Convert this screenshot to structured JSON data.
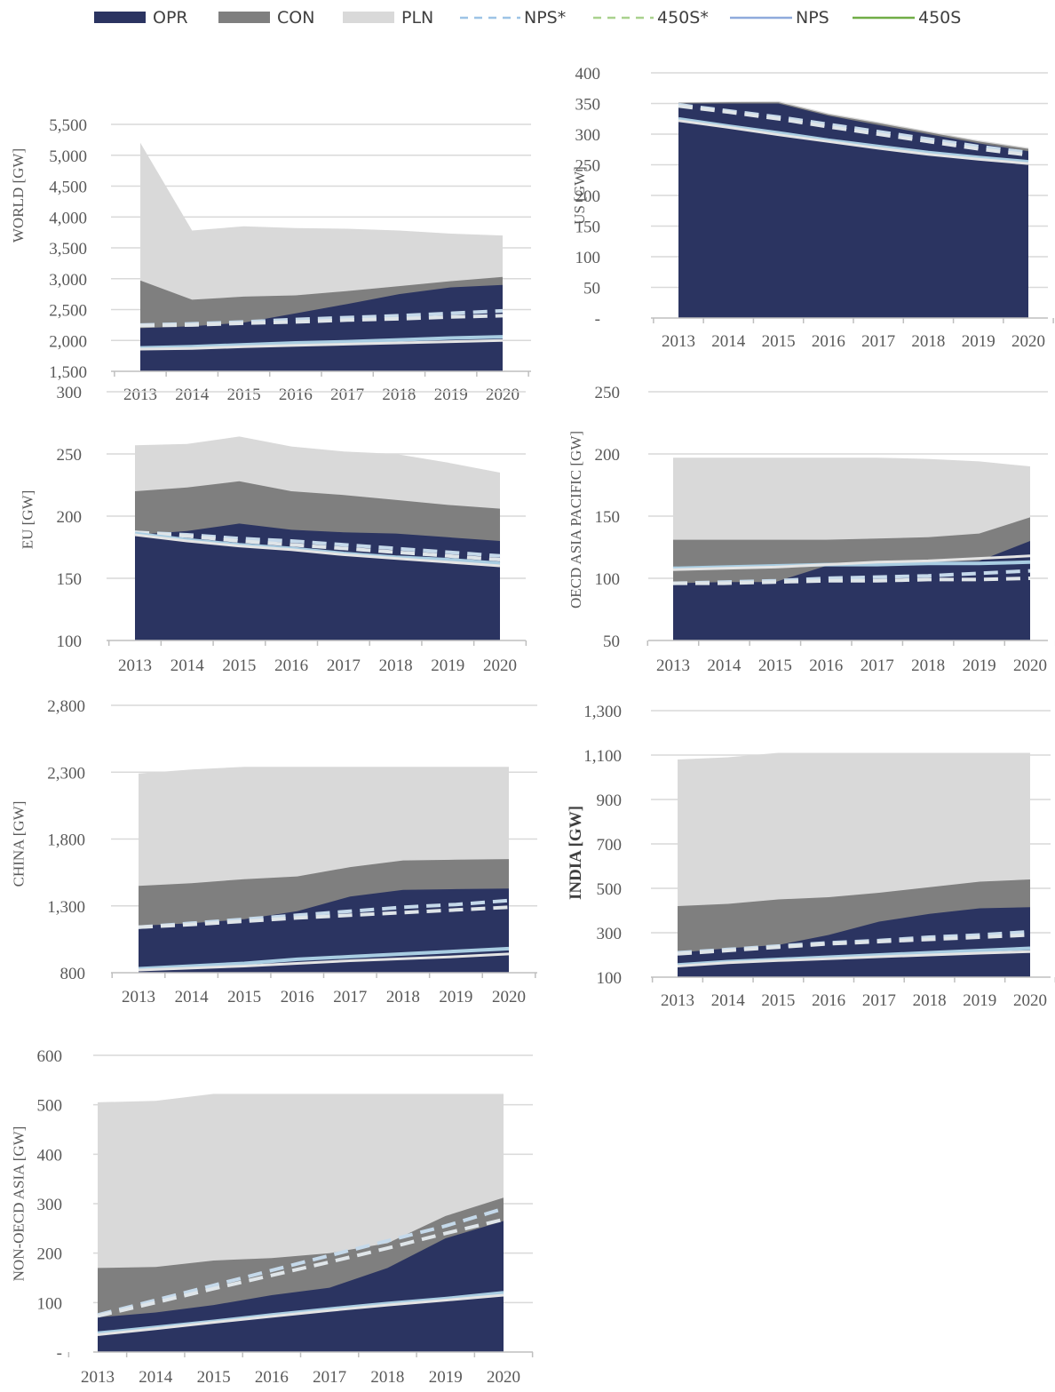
{
  "legend": [
    {
      "key": "opr",
      "label": "OPR",
      "kind": "area",
      "color": "#2b3461"
    },
    {
      "key": "con",
      "label": "CON",
      "kind": "area",
      "color": "#7f7f7f"
    },
    {
      "key": "pln",
      "label": "PLN",
      "kind": "area",
      "color": "#d9d9d9"
    },
    {
      "key": "nps_star",
      "label": "NPS*",
      "kind": "dash",
      "color": "#9dc3e6"
    },
    {
      "key": "s450_star",
      "label": "450S*",
      "kind": "dash",
      "color": "#a9d18e"
    },
    {
      "key": "nps",
      "label": "NPS",
      "kind": "line",
      "color": "#8faadc"
    },
    {
      "key": "s450",
      "label": "450S",
      "kind": "line",
      "color": "#70ad47"
    }
  ],
  "chart_data": [
    {
      "id": "world",
      "type": "area",
      "ylabel": "WORLD [GW]",
      "categories": [
        "2013",
        "2014",
        "2015",
        "2016",
        "2017",
        "2018",
        "2019",
        "2020"
      ],
      "ylim": [
        1500,
        5500
      ],
      "yticks": [
        "1,500",
        "2,000",
        "2,500",
        "3,000",
        "3,500",
        "4,000",
        "4,500",
        "5,000",
        "5,500"
      ],
      "grid": true,
      "series": [
        {
          "name": "OPR",
          "values": [
            2200,
            2230,
            2290,
            2440,
            2590,
            2750,
            2860,
            2900
          ]
        },
        {
          "name": "CON",
          "values": [
            2970,
            2660,
            2710,
            2730,
            2800,
            2880,
            2960,
            3030
          ]
        },
        {
          "name": "PLN",
          "values": [
            5200,
            3780,
            3850,
            3820,
            3810,
            3780,
            3730,
            3700
          ]
        },
        {
          "name": "NPS*",
          "values": [
            2250,
            2270,
            2300,
            2340,
            2370,
            2400,
            2440,
            2480
          ]
        },
        {
          "name": "450S*",
          "values": [
            2240,
            2250,
            2280,
            2300,
            2330,
            2350,
            2380,
            2400
          ]
        },
        {
          "name": "NPS",
          "values": [
            1880,
            1900,
            1930,
            1960,
            1980,
            2010,
            2040,
            2060
          ]
        },
        {
          "name": "450S",
          "values": [
            1860,
            1870,
            1900,
            1920,
            1940,
            1960,
            1980,
            2000
          ]
        }
      ]
    },
    {
      "id": "us",
      "type": "area",
      "ylabel": "US [GW]",
      "categories": [
        "2013",
        "2014",
        "2015",
        "2016",
        "2017",
        "2018",
        "2019",
        "2020"
      ],
      "ylim": [
        0,
        400
      ],
      "yticks": [
        "-",
        "50",
        "100",
        "150",
        "200",
        "250",
        "300",
        "350",
        "400"
      ],
      "grid": true,
      "series": [
        {
          "name": "OPR",
          "values": [
            350,
            350,
            350,
            330,
            315,
            300,
            285,
            272
          ]
        },
        {
          "name": "CON",
          "values": [
            351,
            352,
            352,
            332,
            318,
            303,
            288,
            276
          ]
        },
        {
          "name": "PLN",
          "values": [
            352,
            353,
            354,
            334,
            320,
            305,
            290,
            278
          ]
        },
        {
          "name": "NPS*",
          "values": [
            348,
            338,
            328,
            316,
            304,
            292,
            280,
            270
          ]
        },
        {
          "name": "450S*",
          "values": [
            346,
            336,
            325,
            312,
            300,
            288,
            276,
            266
          ]
        },
        {
          "name": "NPS",
          "values": [
            325,
            313,
            302,
            290,
            280,
            270,
            262,
            255
          ]
        },
        {
          "name": "450S",
          "values": [
            322,
            311,
            299,
            288,
            277,
            267,
            259,
            252
          ]
        }
      ]
    },
    {
      "id": "eu",
      "type": "area",
      "ylabel": "EU [GW]",
      "categories": [
        "2013",
        "2014",
        "2015",
        "2016",
        "2017",
        "2018",
        "2019",
        "2020"
      ],
      "ylim": [
        100,
        300
      ],
      "yticks": [
        "100",
        "150",
        "200",
        "250",
        "300"
      ],
      "grid": true,
      "series": [
        {
          "name": "OPR",
          "values": [
            185,
            188,
            194,
            189,
            187,
            186,
            183,
            180
          ]
        },
        {
          "name": "CON",
          "values": [
            220,
            223,
            228,
            220,
            217,
            213,
            209,
            206
          ]
        },
        {
          "name": "PLN",
          "values": [
            257,
            258,
            264,
            256,
            252,
            250,
            243,
            235
          ]
        },
        {
          "name": "NPS*",
          "values": [
            187,
            185,
            182,
            180,
            177,
            174,
            171,
            168
          ]
        },
        {
          "name": "450S*",
          "values": [
            187,
            184,
            180,
            177,
            174,
            171,
            168,
            165
          ]
        },
        {
          "name": "NPS",
          "values": [
            186,
            181,
            177,
            174,
            170,
            167,
            165,
            162
          ]
        },
        {
          "name": "450S",
          "values": [
            185,
            180,
            176,
            173,
            169,
            166,
            163,
            160
          ]
        }
      ]
    },
    {
      "id": "oecd_asia_pacific",
      "type": "area",
      "ylabel": "OECD ASIA PACIFIC [GW]",
      "categories": [
        "2013",
        "2014",
        "2015",
        "2016",
        "2017",
        "2018",
        "2019",
        "2020"
      ],
      "ylim": [
        50,
        250
      ],
      "yticks": [
        "50",
        "100",
        "150",
        "200",
        "250"
      ],
      "grid": true,
      "series": [
        {
          "name": "OPR",
          "values": [
            96,
            97,
            97,
            110,
            112,
            113,
            114,
            130
          ]
        },
        {
          "name": "CON",
          "values": [
            131,
            131,
            131,
            131,
            132,
            133,
            136,
            149
          ]
        },
        {
          "name": "PLN",
          "values": [
            197,
            197,
            197,
            197,
            197,
            196,
            194,
            190
          ]
        },
        {
          "name": "NPS*",
          "values": [
            96,
            97,
            98,
            100,
            101,
            102,
            104,
            106
          ]
        },
        {
          "name": "450S*",
          "values": [
            96,
            96,
            97,
            98,
            98,
            99,
            99,
            100
          ]
        },
        {
          "name": "NPS",
          "values": [
            108,
            109,
            110,
            111,
            111,
            112,
            112,
            113
          ]
        },
        {
          "name": "450S",
          "values": [
            107,
            108,
            109,
            111,
            113,
            114,
            116,
            118
          ]
        }
      ]
    },
    {
      "id": "china",
      "type": "area",
      "ylabel": "CHINA [GW]",
      "categories": [
        "2013",
        "2014",
        "2015",
        "2016",
        "2017",
        "2018",
        "2019",
        "2020"
      ],
      "ylim": [
        800,
        2800
      ],
      "yticks": [
        "800",
        "1,300",
        "1,800",
        "2,300",
        "2,800"
      ],
      "grid": true,
      "series": [
        {
          "name": "OPR",
          "values": [
            1150,
            1170,
            1200,
            1260,
            1370,
            1420,
            1425,
            1430
          ]
        },
        {
          "name": "CON",
          "values": [
            1450,
            1470,
            1500,
            1520,
            1590,
            1640,
            1645,
            1650
          ]
        },
        {
          "name": "PLN",
          "values": [
            2290,
            2320,
            2340,
            2340,
            2340,
            2340,
            2340,
            2340
          ]
        },
        {
          "name": "NPS*",
          "values": [
            1140,
            1170,
            1200,
            1230,
            1260,
            1290,
            1310,
            1340
          ]
        },
        {
          "name": "450S*",
          "values": [
            1140,
            1160,
            1185,
            1210,
            1230,
            1250,
            1270,
            1290
          ]
        },
        {
          "name": "NPS",
          "values": [
            830,
            850,
            870,
            900,
            920,
            940,
            960,
            980
          ]
        },
        {
          "name": "450S",
          "values": [
            820,
            835,
            850,
            870,
            890,
            905,
            920,
            940
          ]
        }
      ]
    },
    {
      "id": "india",
      "type": "area",
      "ylabel": "INDIA [GW]",
      "categories": [
        "2013",
        "2014",
        "2015",
        "2016",
        "2017",
        "2018",
        "2019",
        "2020"
      ],
      "ylim": [
        100,
        1300
      ],
      "yticks": [
        "100",
        "300",
        "500",
        "700",
        "900",
        "1,100",
        "1,300"
      ],
      "grid": true,
      "series": [
        {
          "name": "OPR",
          "values": [
            210,
            230,
            245,
            290,
            350,
            385,
            410,
            415
          ]
        },
        {
          "name": "CON",
          "values": [
            420,
            430,
            450,
            460,
            480,
            505,
            530,
            540
          ]
        },
        {
          "name": "PLN",
          "values": [
            1080,
            1090,
            1110,
            1110,
            1110,
            1110,
            1110,
            1110
          ]
        },
        {
          "name": "NPS*",
          "values": [
            210,
            225,
            240,
            255,
            265,
            280,
            290,
            305
          ]
        },
        {
          "name": "450S*",
          "values": [
            205,
            220,
            235,
            250,
            260,
            270,
            280,
            290
          ]
        },
        {
          "name": "NPS",
          "values": [
            155,
            170,
            180,
            190,
            200,
            210,
            220,
            230
          ]
        },
        {
          "name": "450S",
          "values": [
            150,
            165,
            175,
            183,
            192,
            200,
            208,
            215
          ]
        }
      ]
    },
    {
      "id": "non_oecd_asia",
      "type": "area",
      "ylabel": "NON-OECD ASIA [GW]",
      "categories": [
        "2013",
        "2014",
        "2015",
        "2016",
        "2017",
        "2018",
        "2019",
        "2020"
      ],
      "ylim": [
        0,
        600
      ],
      "yticks": [
        "-",
        "100",
        "200",
        "300",
        "400",
        "500",
        "600"
      ],
      "grid": true,
      "series": [
        {
          "name": "OPR",
          "values": [
            70,
            80,
            95,
            115,
            130,
            170,
            230,
            265
          ]
        },
        {
          "name": "CON",
          "values": [
            170,
            172,
            185,
            190,
            200,
            220,
            275,
            312
          ]
        },
        {
          "name": "PLN",
          "values": [
            505,
            508,
            522,
            522,
            522,
            522,
            522,
            522
          ]
        },
        {
          "name": "NPS*",
          "values": [
            75,
            105,
            135,
            165,
            195,
            225,
            255,
            290
          ]
        },
        {
          "name": "450S*",
          "values": [
            73,
            100,
            128,
            155,
            182,
            210,
            240,
            268
          ]
        },
        {
          "name": "NPS",
          "values": [
            38,
            50,
            62,
            75,
            87,
            98,
            108,
            120
          ]
        },
        {
          "name": "450S",
          "values": [
            35,
            47,
            60,
            72,
            84,
            95,
            105,
            115
          ]
        }
      ]
    }
  ]
}
